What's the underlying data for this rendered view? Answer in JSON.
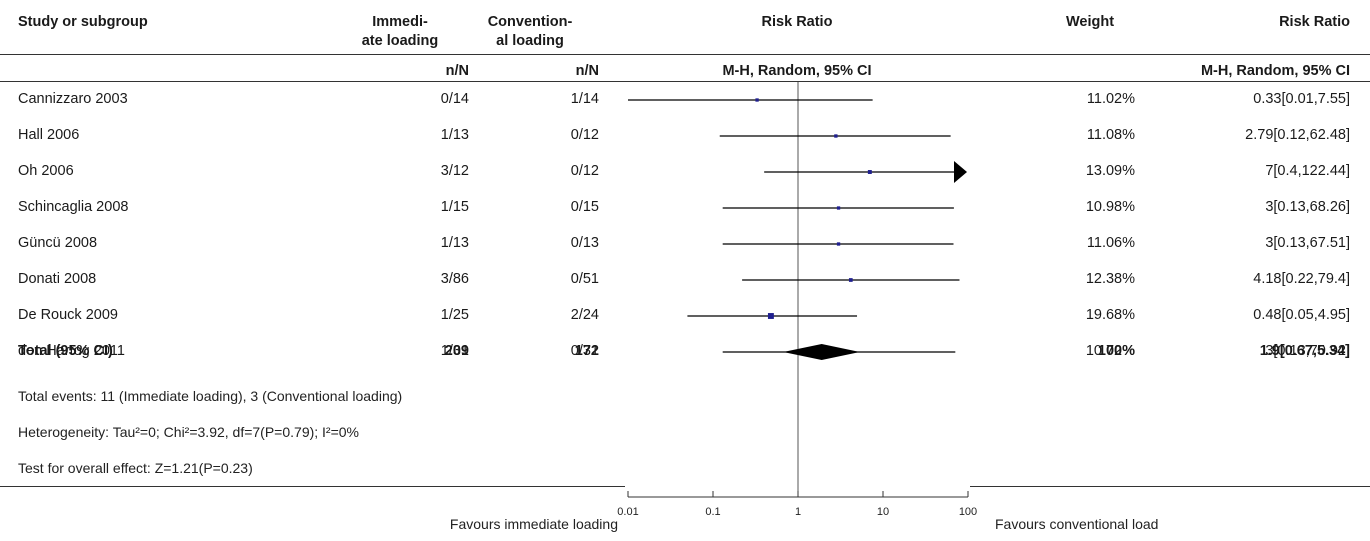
{
  "headers": {
    "study": "Study or subgroup",
    "exp_line1": "Immedi-",
    "exp_line2": "ate loading",
    "ctrl_line1": "Convention-",
    "ctrl_line2": "al loading",
    "plot": "Risk Ratio",
    "weight": "Weight",
    "rr": "Risk Ratio",
    "exp_sub": "n/N",
    "ctrl_sub": "n/N",
    "plot_sub": "M-H, Random, 95% CI",
    "rr_sub": "M-H, Random, 95% CI"
  },
  "chart_data": {
    "type": "forest",
    "x_scale": "log",
    "xlim": [
      0.01,
      100
    ],
    "ticks": [
      "0.01",
      "0.1",
      "1",
      "10",
      "100"
    ],
    "tick_values": [
      0.01,
      0.1,
      1,
      10,
      100
    ],
    "reference_line": 1,
    "favours_left": "Favours immediate loading",
    "favours_right": "Favours conventional load",
    "studies": [
      {
        "name": "Cannizzaro 2003",
        "exp": "0/14",
        "ctrl": "1/14",
        "weight": "11.02%",
        "rr_text": "0.33[0.01,7.55]",
        "rr": 0.33,
        "lo": 0.01,
        "hi": 7.55,
        "arrow_right": false
      },
      {
        "name": "Hall 2006",
        "exp": "1/13",
        "ctrl": "0/12",
        "weight": "11.08%",
        "rr_text": "2.79[0.12,62.48]",
        "rr": 2.79,
        "lo": 0.12,
        "hi": 62.48,
        "arrow_right": false
      },
      {
        "name": "Oh 2006",
        "exp": "3/12",
        "ctrl": "0/12",
        "weight": "13.09%",
        "rr_text": "7[0.4,122.44]",
        "rr": 7,
        "lo": 0.4,
        "hi": 122.44,
        "arrow_right": true
      },
      {
        "name": "Schincaglia 2008",
        "exp": "1/15",
        "ctrl": "0/15",
        "weight": "10.98%",
        "rr_text": "3[0.13,68.26]",
        "rr": 3,
        "lo": 0.13,
        "hi": 68.26,
        "arrow_right": false
      },
      {
        "name": "Güncü 2008",
        "exp": "1/13",
        "ctrl": "0/13",
        "weight": "11.06%",
        "rr_text": "3[0.13,67.51]",
        "rr": 3,
        "lo": 0.13,
        "hi": 67.51,
        "arrow_right": false
      },
      {
        "name": "Donati 2008",
        "exp": "3/86",
        "ctrl": "0/51",
        "weight": "12.38%",
        "rr_text": "4.18[0.22,79.4]",
        "rr": 4.18,
        "lo": 0.22,
        "hi": 79.4,
        "arrow_right": false
      },
      {
        "name": "De Rouck 2009",
        "exp": "1/25",
        "ctrl": "2/24",
        "weight": "19.68%",
        "rr_text": "0.48[0.05,4.95]",
        "rr": 0.48,
        "lo": 0.05,
        "hi": 4.95,
        "arrow_right": false
      },
      {
        "name": "den Hartog 2011",
        "exp": "1/31",
        "ctrl": "0/31",
        "weight": "10.72%",
        "rr_text": "3[0.13,70.92]",
        "rr": 3,
        "lo": 0.13,
        "hi": 70.92,
        "arrow_right": false
      }
    ],
    "total": {
      "name": "Total (95% CI)",
      "exp": "209",
      "ctrl": "172",
      "weight": "100%",
      "rr_text": "1.9[0.67,5.34]",
      "rr": 1.9,
      "lo": 0.67,
      "hi": 5.34
    }
  },
  "footnotes": {
    "events": "Total events: 11 (Immediate loading), 3 (Conventional loading)",
    "heterogeneity": "Heterogeneity: Tau²=0; Chi²=3.92, df=7(P=0.79); I²=0%",
    "overall": "Test for overall effect: Z=1.21(P=0.23)"
  },
  "colors": {
    "marker": "#1f1f8f",
    "line": "#000000",
    "diamond": "#000000"
  }
}
